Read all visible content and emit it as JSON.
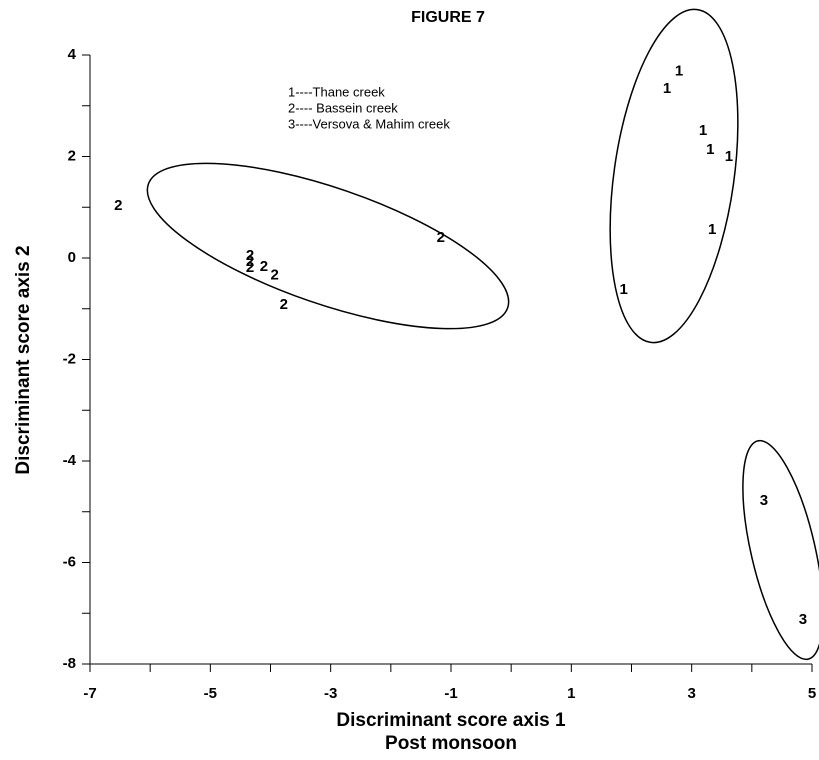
{
  "chart_data": {
    "type": "scatter",
    "title": "FIGURE 7",
    "x_label": "Discriminant score axis 1",
    "x_sublabel": "Post monsoon",
    "y_label": "Discriminant score axis 2",
    "xlim": [
      -7,
      5
    ],
    "ylim": [
      -8,
      4
    ],
    "xticks": [
      -7,
      -5,
      -3,
      -1,
      1,
      3,
      5
    ],
    "yticks": [
      4,
      2,
      0,
      -2,
      -4,
      -6,
      -8
    ],
    "xminorticks": [
      -6,
      -4,
      -2,
      0,
      2,
      4
    ],
    "yminorticks": [
      3,
      1,
      -1,
      -3,
      -5,
      -7
    ],
    "series": [
      {
        "name": "1----Thane creek",
        "marker": "1",
        "color": "#000000",
        "x": [
          2.79,
          2.59,
          3.19,
          3.31,
          3.62,
          3.34,
          1.87
        ],
        "values": [
          3.67,
          3.33,
          2.5,
          2.13,
          1.99,
          0.55,
          -0.63
        ]
      },
      {
        "name": "2---- Bassein creek",
        "marker": "2",
        "color": "#000000",
        "x": [
          -6.53,
          -1.17,
          -4.34,
          -4.34,
          -4.34,
          -4.11,
          -3.93,
          -3.78
        ],
        "values": [
          1.02,
          0.39,
          0.04,
          -0.08,
          -0.2,
          -0.18,
          -0.35,
          -0.93
        ]
      },
      {
        "name": "3----Versova & Mahim creek",
        "marker": "3",
        "color": "#000000",
        "x": [
          4.2,
          4.85
        ],
        "values": [
          -4.79,
          -7.13
        ]
      }
    ]
  }
}
